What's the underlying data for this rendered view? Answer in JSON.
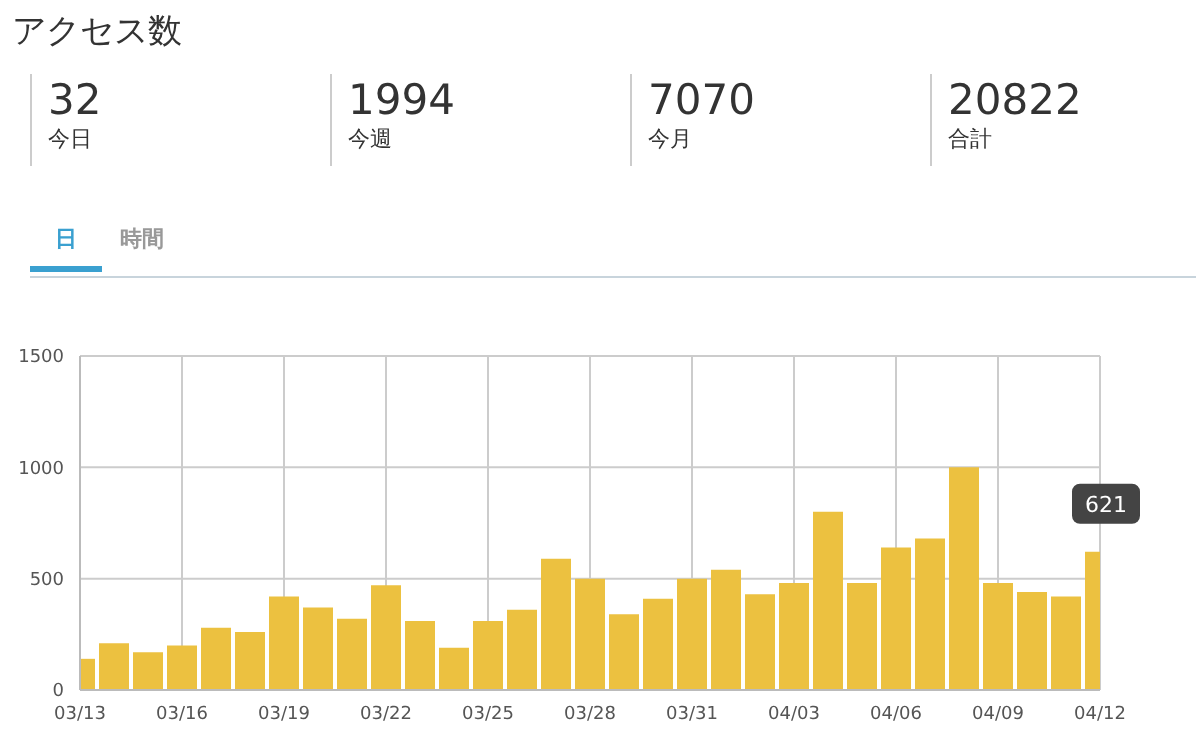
{
  "chart_data": [
    {
      "type": "other",
      "title": "アクセス数",
      "categories": [
        "日",
        "時間"
      ],
      "annotations": [
        "32",
        "今日",
        "1994",
        "今週",
        "7070",
        "今月",
        "20822",
        "合計"
      ]
    },
    {
      "type": "bar",
      "categories": [
        "03/13",
        null,
        null,
        "03/16",
        null,
        null,
        "03/19",
        null,
        null,
        "03/22",
        null,
        null,
        "03/25",
        null,
        null,
        "03/28",
        null,
        null,
        "03/31",
        null,
        null,
        "04/03",
        null,
        null,
        "04/06",
        null,
        null,
        "04/09",
        null,
        null,
        "04/12"
      ],
      "values": [
        140,
        210,
        170,
        200,
        280,
        260,
        420,
        370,
        320,
        470,
        310,
        190,
        310,
        360,
        590,
        500,
        340,
        410,
        500,
        540,
        430,
        480,
        800,
        480,
        640,
        680,
        1000,
        480,
        440,
        420,
        621
      ],
      "color": "#ecc140",
      "ylim": [
        0,
        1500
      ],
      "yticks": [
        0,
        500,
        1000,
        1500
      ],
      "grid": true,
      "annotations": [
        {
          "text": "621",
          "x": "04/12",
          "y": 621
        }
      ]
    }
  ]
}
